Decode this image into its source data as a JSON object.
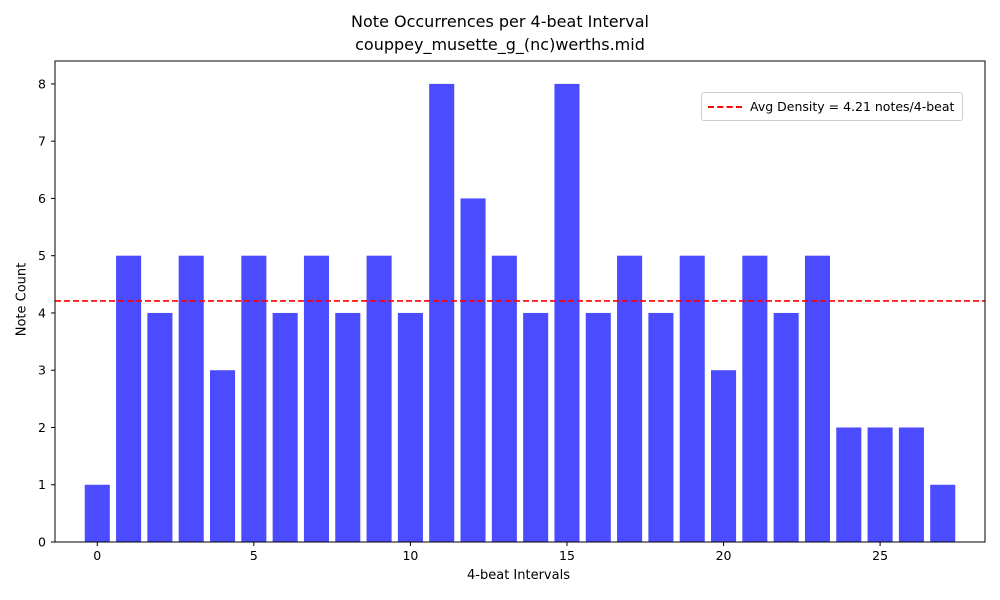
{
  "chart_data": {
    "type": "bar",
    "title": "Note Occurrences per 4-beat Interval",
    "subtitle": "couppey_musette_g_(nc)werths.mid",
    "xlabel": "4-beat Intervals",
    "ylabel": "Note Count",
    "x": [
      0,
      1,
      2,
      3,
      4,
      5,
      6,
      7,
      8,
      9,
      10,
      11,
      12,
      13,
      14,
      15,
      16,
      17,
      18,
      19,
      20,
      21,
      22,
      23,
      24,
      25,
      26,
      27
    ],
    "values": [
      1,
      5,
      4,
      5,
      3,
      5,
      4,
      5,
      4,
      5,
      4,
      8,
      6,
      5,
      4,
      8,
      4,
      5,
      4,
      5,
      3,
      5,
      4,
      5,
      2,
      2,
      2,
      1
    ],
    "xlim": [
      -1.35,
      28.35
    ],
    "ylim": [
      0,
      8.4
    ],
    "xticks": [
      "0",
      "5",
      "10",
      "15",
      "20",
      "25"
    ],
    "yticks": [
      "0",
      "1",
      "2",
      "3",
      "4",
      "5",
      "6",
      "7",
      "8"
    ],
    "bar_color": "#4b4bff",
    "reference_line": {
      "value": 4.21,
      "color": "#ff0000",
      "style": "dashed",
      "label": "Avg Density = 4.21 notes/4-beat"
    },
    "legend_position": "top-right",
    "grid": false
  }
}
